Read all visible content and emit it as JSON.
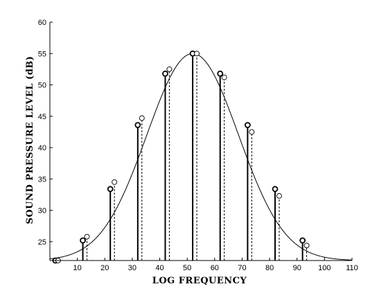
{
  "chart_data": {
    "type": "line",
    "title": "",
    "xlabel": "LOG FREQUENCY",
    "ylabel": "SOUND PRESSURE LEVEL (dB)",
    "xlim": [
      0,
      110
    ],
    "ylim": [
      22,
      60
    ],
    "x_ticks": [
      10,
      20,
      30,
      40,
      50,
      60,
      70,
      80,
      90,
      100,
      110
    ],
    "y_ticks": [
      25,
      30,
      35,
      40,
      45,
      50,
      55,
      60
    ],
    "grid": false,
    "curve": {
      "peak_x": 52,
      "peak_y": 55,
      "base_y": 22,
      "amplitude": 33,
      "sigma": 16.7
    },
    "series": [
      {
        "style": "solid-stems-bold-circle-markers",
        "x": [
          2,
          12,
          22,
          32,
          42,
          52,
          62,
          72,
          82,
          92
        ],
        "y": [
          22.0,
          25.2,
          33.4,
          43.6,
          51.8,
          55.0,
          51.8,
          43.6,
          33.4,
          25.2
        ]
      },
      {
        "style": "dashed-stems-open-circle-markers",
        "x": [
          3,
          13.5,
          23.5,
          33.5,
          43.5,
          53.5,
          63.5,
          73.5,
          83.5,
          93.5
        ],
        "y": [
          22.0,
          25.8,
          34.5,
          44.7,
          52.5,
          55.0,
          51.2,
          42.5,
          32.3,
          24.4
        ]
      }
    ]
  }
}
